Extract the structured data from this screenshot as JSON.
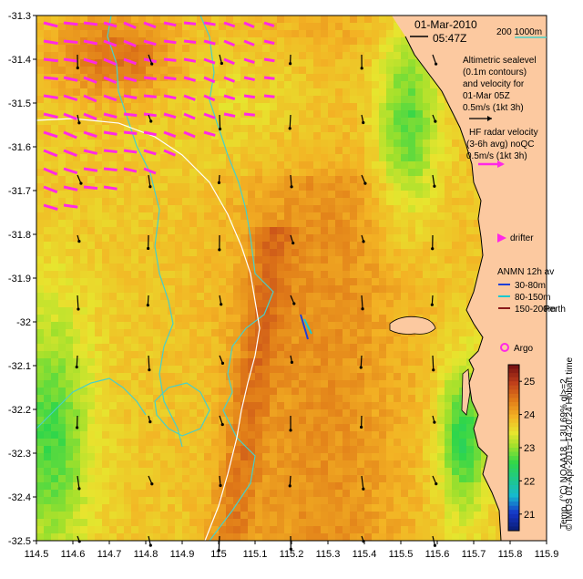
{
  "title": {
    "date": "01-Mar-2010",
    "time": "05:47Z"
  },
  "scale_bar": {
    "label": "200  1000m"
  },
  "altimetry": {
    "lines": [
      "Altimetric sealevel",
      "(0.1m contours)",
      "and velocity for",
      "01-Mar 05Z"
    ],
    "arrow_label": "0.5m/s (1kt 3h)"
  },
  "hf_radar": {
    "lines": [
      "HF radar velocity",
      "(3-6h avg) noQC"
    ],
    "arrow_label": "0.5m/s (1kt 3h)"
  },
  "drifter": {
    "label": "drifter"
  },
  "anmn": {
    "title": "ANMN 12h av",
    "items": [
      {
        "label": "30-80m",
        "color": "#1f3fd6"
      },
      {
        "label": "80-150m",
        "color": "#19c9d0"
      },
      {
        "label": "150-200m",
        "color": "#8a1a1a"
      }
    ]
  },
  "places": {
    "perth": "Perth"
  },
  "argo": {
    "label": "Argo"
  },
  "colorbar": {
    "label": "Temp. (°C) NOAA18_L3U 69% ql>=2",
    "ticks": [
      "21",
      "22",
      "23",
      "24",
      "25"
    ],
    "min": 20.5,
    "max": 25.5
  },
  "credit": "© IMOS 01-Apr-2015 14:20:24 Hobart time",
  "axes": {
    "x_ticks": [
      "114.5",
      "114.6",
      "114.7",
      "114.8",
      "114.9",
      "115",
      "115.1",
      "115.2",
      "115.3",
      "115.4",
      "115.5",
      "115.6",
      "115.7",
      "115.8",
      "115.9"
    ],
    "y_ticks": [
      "-31.3",
      "-31.4",
      "-31.5",
      "-31.6",
      "-31.7",
      "-31.8",
      "-31.9",
      "-32",
      "-32.1",
      "-32.2",
      "-32.3",
      "-32.4",
      "-32.5"
    ]
  },
  "colors": {
    "land": "#fcc9a0",
    "contour_200m": "#48d0c8",
    "contour_1000m": "#ffffff",
    "hf_arrow": "#ff28e6",
    "drifter": "#ff28e6",
    "argo": "#ff28e6"
  }
}
